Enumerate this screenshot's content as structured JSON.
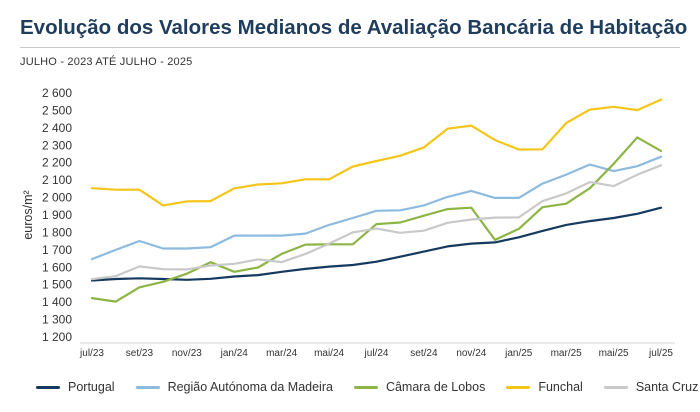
{
  "header": {
    "title": "Evolução dos Valores Medianos de Avaliação Bancária de Habitação",
    "subtitle": "JULHO - 2023 ATÉ JULHO - 2025"
  },
  "chart_data": {
    "type": "line",
    "title": "Evolução dos Valores Medianos de Avaliação Bancária de Habitação",
    "subtitle": "JULHO - 2023 ATÉ JULHO - 2025",
    "xlabel": "",
    "ylabel": "euros/m²",
    "ylim": [
      1200,
      2600
    ],
    "yticks": [
      1200,
      1300,
      1400,
      1500,
      1600,
      1700,
      1800,
      1900,
      2000,
      2100,
      2200,
      2300,
      2400,
      2500,
      2600
    ],
    "ytick_labels": [
      "1 200",
      "1 300",
      "1 400",
      "1 500",
      "1 600",
      "1 700",
      "1 800",
      "1 900",
      "2 000",
      "2 100",
      "2 200",
      "2 300",
      "2 400",
      "2 500",
      "2 600"
    ],
    "x": [
      "jul/23",
      "ago/23",
      "set/23",
      "out/23",
      "nov/23",
      "dez/23",
      "jan/24",
      "fev/24",
      "mar/24",
      "abr/24",
      "mai/24",
      "jun/24",
      "jul/24",
      "ago/24",
      "set/24",
      "out/24",
      "nov/24",
      "dez/24",
      "jan/25",
      "fev/25",
      "mar/25",
      "abr/25",
      "mai/25",
      "jun/25",
      "jul/25"
    ],
    "xtick_labels": [
      "jul/23",
      "",
      "set/23",
      "",
      "nov/23",
      "",
      "jan/24",
      "",
      "mar/24",
      "",
      "mai/24",
      "",
      "jul/24",
      "",
      "set/24",
      "",
      "nov/24",
      "",
      "jan/25",
      "",
      "mar/25",
      "",
      "mai/25",
      "",
      "jul/25"
    ],
    "grid": false,
    "legend_position": "bottom",
    "series": [
      {
        "name": "Portugal",
        "color": "#163a5f",
        "values": [
          1524,
          1533,
          1537,
          1533,
          1528,
          1534,
          1547,
          1555,
          1574,
          1591,
          1604,
          1613,
          1632,
          1661,
          1690,
          1720,
          1736,
          1743,
          1772,
          1809,
          1843,
          1865,
          1883,
          1907,
          1942
        ]
      },
      {
        "name": "Região Autónoma da Madeira",
        "color": "#8dbbe0",
        "values": [
          1647,
          1700,
          1751,
          1708,
          1708,
          1715,
          1782,
          1782,
          1782,
          1793,
          1843,
          1883,
          1924,
          1927,
          1955,
          2004,
          2038,
          1998,
          1998,
          2080,
          2132,
          2190,
          2152,
          2180,
          2234
        ]
      },
      {
        "name": "Câmara de Lobos",
        "color": "#8db545",
        "values": [
          1423,
          1403,
          1485,
          1517,
          1563,
          1629,
          1574,
          1599,
          1677,
          1730,
          1732,
          1732,
          1848,
          1857,
          1896,
          1934,
          1942,
          1757,
          1820,
          1945,
          1965,
          2054,
          2193,
          2345,
          2268
        ]
      },
      {
        "name": "Funchal",
        "color": "#f5c518",
        "values": [
          2054,
          2045,
          2045,
          1955,
          1978,
          1980,
          2053,
          2075,
          2082,
          2105,
          2105,
          2178,
          2210,
          2240,
          2288,
          2395,
          2413,
          2330,
          2276,
          2277,
          2428,
          2505,
          2521,
          2502,
          2562
        ]
      },
      {
        "name": "Santa Cruz",
        "color": "#c9c9c9",
        "values": [
          1532,
          1549,
          1605,
          1589,
          1588,
          1610,
          1620,
          1645,
          1630,
          1676,
          1736,
          1800,
          1822,
          1798,
          1810,
          1855,
          1874,
          1885,
          1886,
          1980,
          2024,
          2089,
          2066,
          2131,
          2185
        ]
      }
    ]
  }
}
